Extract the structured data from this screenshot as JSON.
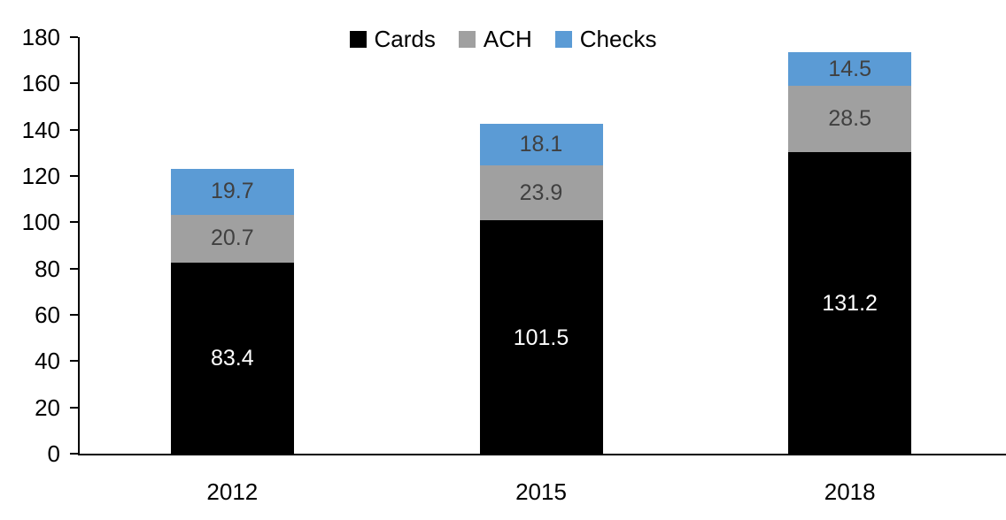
{
  "chart_data": {
    "type": "bar",
    "stacked": true,
    "title": "",
    "xlabel": "",
    "ylabel": "",
    "categories": [
      "2012",
      "2015",
      "2018"
    ],
    "series": [
      {
        "name": "Cards",
        "color": "#000000",
        "label_color": "#FFFFFF",
        "values": [
          83.4,
          101.5,
          131.2
        ]
      },
      {
        "name": "ACH",
        "color": "#A0A0A0",
        "label_color": "#404040",
        "values": [
          20.7,
          23.9,
          28.5
        ]
      },
      {
        "name": "Checks",
        "color": "#5B9BD5",
        "label_color": "#404040",
        "values": [
          19.7,
          18.1,
          14.5
        ]
      }
    ],
    "ylim": [
      0,
      180
    ],
    "yticks": [
      0,
      20,
      40,
      60,
      80,
      100,
      120,
      140,
      160,
      180
    ],
    "grid": false,
    "legend_position": "top-center",
    "axis_color": "#000000",
    "data_labels": true,
    "label_format": "one-decimal"
  }
}
